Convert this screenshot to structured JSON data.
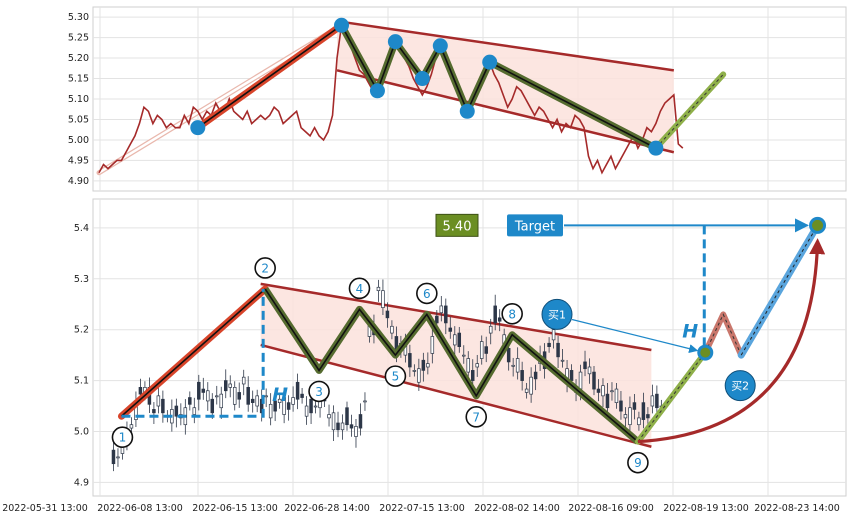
{
  "chart_data": [
    {
      "panel": "top",
      "type": "line",
      "yticks": [
        4.9,
        4.95,
        5.0,
        5.05,
        5.1,
        5.15,
        5.2,
        5.25,
        5.3
      ],
      "ylim": [
        4.89,
        5.31
      ],
      "grid": true,
      "series": [
        {
          "values": [
            4.92,
            4.94,
            4.93,
            4.94,
            4.95,
            4.95,
            4.97,
            4.99,
            5.01,
            5.04,
            5.08,
            5.07,
            5.04,
            5.06,
            5.05,
            5.03,
            5.04,
            5.03,
            5.03,
            5.06,
            5.04,
            5.08,
            5.07,
            5.05,
            5.07,
            5.06,
            5.09,
            5.07,
            5.07,
            5.1,
            5.07,
            5.06,
            5.05,
            5.07,
            5.04,
            5.05,
            5.06,
            5.05,
            5.06,
            5.08,
            5.07,
            5.04,
            5.05,
            5.06,
            5.07,
            5.03,
            5.02,
            5.01,
            5.03,
            5.01,
            5.0,
            5.02,
            5.06,
            5.2,
            5.28,
            5.26,
            5.23,
            5.2,
            5.17,
            5.16,
            5.14,
            5.12,
            5.11,
            5.13,
            5.17,
            5.22,
            5.24,
            5.23,
            5.2,
            5.18,
            5.15,
            5.13,
            5.11,
            5.13,
            5.16,
            5.2,
            5.23,
            5.22,
            5.18,
            5.15,
            5.13,
            5.11,
            5.08,
            5.09,
            5.11,
            5.14,
            5.17,
            5.19,
            5.16,
            5.14,
            5.11,
            5.08,
            5.1,
            5.13,
            5.12,
            5.1,
            5.08,
            5.06,
            5.08,
            5.07,
            5.05,
            5.03,
            5.05,
            5.02,
            5.04,
            5.03,
            5.06,
            5.05,
            5.03,
            4.96,
            4.93,
            4.95,
            4.92,
            4.94,
            4.96,
            4.93,
            4.95,
            4.97,
            4.99,
            5.01,
            4.98,
            5.0,
            5.03,
            5.02,
            5.04,
            5.07,
            5.09,
            5.1,
            5.11,
            4.99,
            4.98
          ]
        }
      ],
      "pivots": [
        {
          "i": 22,
          "y": 5.03
        },
        {
          "i": 54,
          "y": 5.28
        },
        {
          "i": 62,
          "y": 5.12
        },
        {
          "i": 66,
          "y": 5.24
        },
        {
          "i": 72,
          "y": 5.15
        },
        {
          "i": 76,
          "y": 5.23
        },
        {
          "i": 82,
          "y": 5.07
        },
        {
          "i": 87,
          "y": 5.19
        },
        {
          "i": 124,
          "y": 4.98
        }
      ],
      "projection": [
        {
          "i": 124,
          "y": 4.98
        },
        {
          "i": 139,
          "y": 5.16
        }
      ],
      "channel_upper": [
        {
          "i": 53,
          "y": 5.29
        },
        {
          "i": 128,
          "y": 5.17
        }
      ],
      "channel_lower": [
        {
          "i": 53,
          "y": 5.17
        },
        {
          "i": 128,
          "y": 4.97
        }
      ]
    },
    {
      "panel": "bottom",
      "type": "candlestick",
      "yticks": [
        4.9,
        5.0,
        5.1,
        5.2,
        5.3,
        5.4
      ],
      "ylim": [
        4.885,
        5.445
      ],
      "grid": true,
      "x_tick_labels": [
        "2022-05-31 13:00",
        "2022-06-08 13:00",
        "2022-06-15 13:00",
        "2022-06-28 14:00",
        "2022-07-15 13:00",
        "2022-08-02 14:00",
        "2022-08-16 09:00",
        "2022-08-19 13:00",
        "2022-08-23 14:00"
      ],
      "points": [
        {
          "label": "1",
          "i": 5,
          "y": 5.03
        },
        {
          "label": "2",
          "i": 37,
          "y": 5.28
        },
        {
          "label": "3",
          "i": 49,
          "y": 5.12
        },
        {
          "label": "4",
          "i": 58,
          "y": 5.24
        },
        {
          "label": "5",
          "i": 66,
          "y": 5.15
        },
        {
          "label": "6",
          "i": 73,
          "y": 5.23
        },
        {
          "label": "7",
          "i": 84,
          "y": 5.07
        },
        {
          "label": "8",
          "i": 92,
          "y": 5.19
        },
        {
          "label": "9",
          "i": 120,
          "y": 4.98
        }
      ],
      "channel_upper": [
        {
          "i": 36,
          "y": 5.29
        },
        {
          "i": 123,
          "y": 5.16
        }
      ],
      "channel_lower": [
        {
          "i": 36,
          "y": 5.17
        },
        {
          "i": 123,
          "y": 4.97
        }
      ],
      "projection": {
        "buy1": {
          "i": 135,
          "y": 5.155
        },
        "peak": {
          "i": 139,
          "y": 5.23
        },
        "buy2": {
          "i": 143,
          "y": 5.15
        },
        "target": {
          "i": 160,
          "y": 5.405
        }
      },
      "annotations": {
        "price_label": "5.40",
        "target_label": "Target",
        "height_label": "H",
        "buy1_label": "买1",
        "buy2_label": "买2"
      },
      "colors": {
        "price_line": "#a52a2a",
        "pattern_zigzag": "#556b2f",
        "channel": "#a52a2a",
        "channel_fill": "#fbe2dc",
        "accent_blue": "#1e88c9",
        "target_box": "#1e88c9",
        "price_box": "#6b8e23"
      }
    }
  ]
}
